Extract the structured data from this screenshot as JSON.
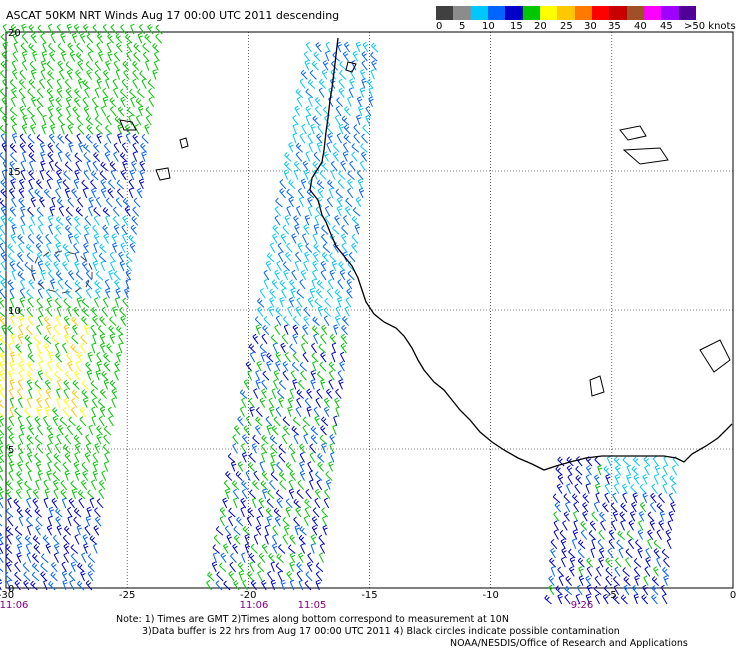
{
  "title": "ASCAT 50KM NRT Winds  Aug 17 00:00 UTC 2011 descending",
  "legend": {
    "colors": [
      "#404040",
      "#8c8c8c",
      "#00c8ff",
      "#0064ff",
      "#0000c8",
      "#00c800",
      "#ffff00",
      "#ffc800",
      "#ff7800",
      "#ff0000",
      "#c80000",
      "#a05028",
      "#ff00ff",
      "#a000ff",
      "#500096"
    ],
    "labels": [
      "0",
      "5",
      "10",
      "15",
      "20",
      "25",
      "30",
      "35",
      "40",
      "45",
      ">50 knots"
    ]
  },
  "axes": {
    "lon_labels": [
      "-30",
      "-25",
      "-20",
      "-15",
      "-10",
      "-5",
      "0"
    ],
    "lat_labels": [
      "20",
      "15",
      "10",
      "5",
      "0"
    ]
  },
  "pass_times": [
    "11:06",
    "11:06",
    "11:05",
    "9:26"
  ],
  "notes": {
    "line1": "Note: 1) Times are GMT 2)Times along bottom correspond to measurement at 10N",
    "line2": "3)Data buffer is 22 hrs from Aug 17 00:00 UTC 2011 4) Black circles indicate possible contamination",
    "line3": "NOAA/NESDIS/Office of Research and Applications"
  }
}
